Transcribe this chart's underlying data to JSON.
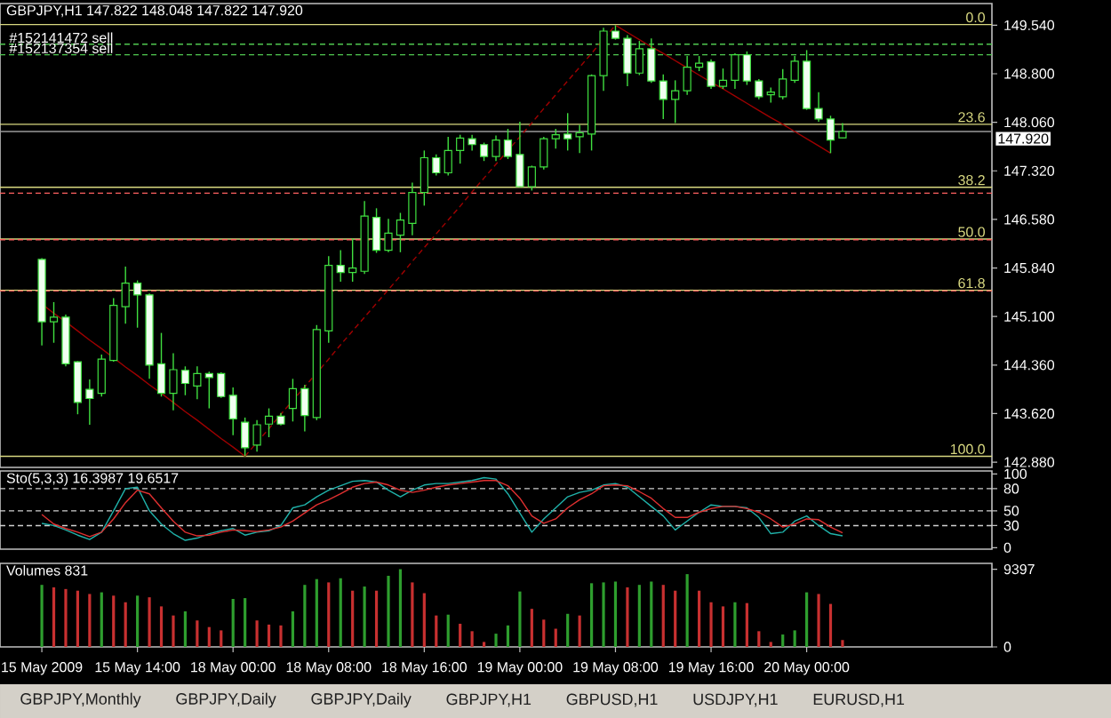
{
  "chart_data": [
    {
      "type": "candlestick",
      "title": "GBPJPY,H1 147.822 148.048 147.822 147.920",
      "categories": [
        null,
        null,
        null,
        null,
        null,
        null,
        null,
        null,
        null,
        null,
        null,
        null,
        null,
        null,
        null,
        null,
        null,
        null,
        null,
        null,
        null,
        null,
        null,
        null,
        null,
        null,
        null,
        null,
        null,
        null,
        null,
        null,
        null,
        null,
        null,
        null,
        null,
        null,
        null,
        null,
        null,
        null,
        null,
        null,
        null,
        null,
        null,
        null,
        null,
        null,
        null,
        null,
        null,
        null,
        null,
        null,
        null,
        null,
        null,
        null,
        null,
        null,
        null,
        null,
        null,
        null,
        null,
        null,
        null,
        null,
        null,
        null,
        null,
        null,
        null,
        null,
        null,
        null,
        null,
        null,
        null,
        null,
        null
      ],
      "ohlc": [
        null,
        null,
        null,
        [
          145.97,
          145.99,
          144.66,
          145.02
        ],
        [
          145.02,
          145.32,
          144.7,
          145.09
        ],
        [
          145.09,
          145.13,
          144.34,
          144.38
        ],
        [
          144.41,
          144.42,
          143.61,
          143.79
        ],
        [
          143.99,
          144.14,
          143.45,
          143.85
        ],
        [
          143.93,
          144.52,
          143.88,
          144.45
        ],
        [
          144.43,
          145.38,
          144.41,
          145.27
        ],
        [
          145.25,
          145.86,
          144.99,
          145.61
        ],
        [
          145.61,
          145.65,
          144.93,
          145.43
        ],
        [
          145.43,
          145.45,
          144.15,
          144.36
        ],
        [
          144.38,
          144.85,
          143.88,
          143.93
        ],
        [
          143.93,
          144.54,
          143.67,
          144.29
        ],
        [
          144.28,
          144.34,
          143.9,
          144.08
        ],
        [
          144.04,
          144.34,
          143.84,
          144.23
        ],
        [
          144.23,
          144.26,
          143.7,
          144.17
        ],
        [
          144.23,
          144.25,
          143.86,
          143.88
        ],
        [
          143.9,
          144.02,
          143.29,
          143.54
        ],
        [
          143.49,
          143.56,
          142.97,
          143.1
        ],
        [
          143.14,
          143.52,
          143.04,
          143.45
        ],
        [
          143.46,
          143.7,
          143.26,
          143.58
        ],
        [
          143.58,
          143.63,
          143.44,
          143.46
        ],
        [
          143.7,
          144.15,
          143.5,
          144.0
        ],
        [
          144.0,
          144.06,
          143.35,
          143.59
        ],
        [
          143.56,
          144.97,
          143.52,
          144.9
        ],
        [
          144.88,
          146.02,
          144.7,
          145.88
        ],
        [
          145.88,
          146.11,
          145.63,
          145.77
        ],
        [
          145.77,
          146.29,
          145.63,
          145.84
        ],
        [
          145.79,
          146.86,
          145.75,
          146.63
        ],
        [
          146.61,
          146.75,
          146.07,
          146.11
        ],
        [
          146.11,
          146.59,
          146.08,
          146.37
        ],
        [
          146.34,
          146.68,
          146.08,
          146.57
        ],
        [
          146.52,
          147.14,
          146.34,
          146.99
        ],
        [
          146.99,
          147.63,
          146.79,
          147.52
        ],
        [
          147.52,
          147.57,
          147.25,
          147.29
        ],
        [
          147.29,
          147.84,
          147.25,
          147.63
        ],
        [
          147.63,
          147.87,
          147.43,
          147.82
        ],
        [
          147.81,
          147.87,
          147.63,
          147.72
        ],
        [
          147.72,
          147.75,
          147.47,
          147.54
        ],
        [
          147.54,
          147.86,
          147.47,
          147.79
        ],
        [
          147.79,
          147.96,
          147.5,
          147.54
        ],
        [
          147.57,
          148.07,
          147.07,
          147.08
        ],
        [
          147.08,
          147.4,
          147.02,
          147.38
        ],
        [
          147.38,
          147.84,
          147.34,
          147.81
        ],
        [
          147.81,
          147.96,
          147.66,
          147.87
        ],
        [
          147.88,
          148.2,
          147.63,
          147.81
        ],
        [
          147.84,
          148.02,
          147.59,
          147.9
        ],
        [
          147.88,
          148.79,
          147.63,
          148.77
        ],
        [
          148.77,
          149.5,
          148.54,
          149.45
        ],
        [
          149.45,
          149.54,
          149.32,
          149.34
        ],
        [
          149.34,
          149.39,
          148.61,
          148.81
        ],
        [
          148.81,
          149.3,
          148.78,
          149.18
        ],
        [
          149.18,
          149.34,
          148.66,
          148.69
        ],
        [
          148.69,
          148.79,
          148.11,
          148.41
        ],
        [
          148.41,
          148.7,
          148.05,
          148.54
        ],
        [
          148.54,
          149.07,
          148.48,
          148.9
        ],
        [
          148.9,
          149.07,
          148.84,
          148.96
        ],
        [
          148.98,
          149.02,
          148.57,
          148.61
        ],
        [
          148.61,
          148.88,
          148.57,
          148.7
        ],
        [
          148.7,
          149.11,
          148.57,
          149.09
        ],
        [
          149.09,
          149.14,
          148.63,
          148.69
        ],
        [
          148.69,
          148.72,
          148.41,
          148.45
        ],
        [
          148.48,
          148.59,
          148.36,
          148.52
        ],
        [
          148.45,
          148.87,
          148.41,
          148.72
        ],
        [
          148.7,
          149.07,
          148.66,
          148.99
        ],
        [
          148.99,
          149.16,
          148.25,
          148.27
        ],
        [
          148.27,
          148.52,
          148.07,
          148.11
        ],
        [
          148.11,
          148.16,
          147.59,
          147.79
        ],
        [
          147.822,
          148.048,
          147.822,
          147.92
        ],
        null,
        null,
        null,
        null,
        null,
        null,
        null,
        null,
        null,
        null,
        null,
        null
      ],
      "color": "#40e040",
      "colors": [
        null,
        null,
        null,
        "#f0fff0",
        "#000000",
        "#f0fff0",
        "#f0fff0",
        "#f0fff0",
        "#000000",
        "#000000",
        "#000000",
        "#f0fff0",
        "#f0fff0",
        "#f0fff0",
        "#000000",
        "#f0fff0",
        "#000000",
        "#f0fff0",
        "#f0fff0",
        "#f0fff0",
        "#f0fff0",
        "#000000",
        "#000000",
        "#f0fff0",
        "#000000",
        "#f0fff0",
        "#000000",
        "#000000",
        "#f0fff0",
        "#000000",
        "#000000",
        "#f0fff0",
        "#000000",
        "#000000",
        "#000000",
        "#000000",
        "#f0fff0",
        "#000000",
        "#000000",
        "#f0fff0",
        "#f0fff0",
        "#000000",
        "#f0fff0",
        "#f0fff0",
        "#000000",
        "#000000",
        "#000000",
        "#f0fff0",
        "#000000",
        "#000000",
        "#000000",
        "#f0fff0",
        "#f0fff0",
        "#000000",
        "#f0fff0",
        "#f0fff0",
        "#000000",
        "#000000",
        "#000000",
        "#f0fff0",
        "#000000",
        "#000000",
        "#f0fff0",
        "#f0fff0",
        "#000000",
        "#000000",
        "#000000",
        "#f0fff0",
        "#f0fff0",
        "#f0fff0",
        "#000000",
        null,
        null,
        null,
        null,
        null,
        null,
        null,
        null,
        null,
        null,
        null,
        null
      ],
      "series": [
        {
          "type": "line",
          "color": "#a00000",
          "line_style": "solid",
          "values": [
            null,
            null,
            null,
            145.29,
            145.15,
            145.02,
            144.88,
            144.74,
            144.61,
            144.47,
            144.33,
            144.2,
            144.06,
            143.93,
            143.79,
            143.65,
            143.52,
            143.38,
            143.24,
            143.11,
            142.97,
            null,
            null,
            null,
            null,
            null,
            null,
            null,
            null,
            null,
            null,
            null,
            null,
            null,
            null,
            null,
            null,
            null,
            null,
            null,
            null,
            null,
            null,
            null,
            null,
            null,
            null,
            null,
            null,
            null,
            null,
            null,
            null,
            null,
            null,
            null,
            null,
            null,
            null,
            null,
            null,
            null,
            null,
            null,
            null,
            null,
            null,
            null,
            null,
            null,
            null,
            null,
            null,
            null,
            null,
            null,
            null,
            null,
            null,
            null,
            null,
            null,
            null
          ]
        },
        {
          "type": "line",
          "color": "#a00000",
          "line_style": "dashed",
          "values": [
            null,
            null,
            null,
            null,
            null,
            null,
            null,
            null,
            null,
            null,
            null,
            null,
            null,
            null,
            null,
            null,
            null,
            null,
            null,
            null,
            142.97,
            143.18,
            143.39,
            143.61,
            143.82,
            144.03,
            144.24,
            144.45,
            144.67,
            144.88,
            145.09,
            145.3,
            145.51,
            145.72,
            145.94,
            146.15,
            146.36,
            146.57,
            146.78,
            147.0,
            147.21,
            147.42,
            147.63,
            147.84,
            148.05,
            148.27,
            148.48,
            148.69,
            148.9,
            149.11,
            149.33,
            149.54,
            null,
            null,
            null,
            null,
            null,
            null,
            null,
            null,
            null,
            null,
            null,
            null,
            null,
            null,
            null,
            null,
            null,
            null,
            null,
            null,
            null,
            null,
            null,
            null,
            null,
            null,
            null,
            null,
            null,
            null,
            null
          ]
        },
        {
          "type": "line",
          "color": "#a00000",
          "line_style": "solid",
          "values": [
            null,
            null,
            null,
            null,
            null,
            null,
            null,
            null,
            null,
            null,
            null,
            null,
            null,
            null,
            null,
            null,
            null,
            null,
            null,
            null,
            null,
            null,
            null,
            null,
            null,
            null,
            null,
            null,
            null,
            null,
            null,
            null,
            null,
            null,
            null,
            null,
            null,
            null,
            null,
            null,
            null,
            null,
            null,
            null,
            null,
            null,
            null,
            null,
            null,
            null,
            null,
            149.54,
            149.43,
            149.32,
            149.21,
            149.11,
            149.0,
            148.89,
            148.78,
            148.67,
            148.57,
            148.46,
            148.35,
            148.24,
            148.13,
            148.03,
            147.92,
            147.81,
            147.7,
            147.59,
            null,
            null,
            null,
            null,
            null,
            null,
            null,
            null,
            null,
            null,
            null,
            null,
            null
          ]
        }
      ],
      "ylim": [
        142.8,
        149.87
      ],
      "yticks": [
        {
          "value": 142.88,
          "label": "142.880"
        },
        {
          "value": 143.62,
          "label": "143.620"
        },
        {
          "value": 144.36,
          "label": "144.360"
        },
        {
          "value": 145.1,
          "label": "145.100"
        },
        {
          "value": 145.84,
          "label": "145.840"
        },
        {
          "value": 146.58,
          "label": "146.580"
        },
        {
          "value": 147.32,
          "label": "147.320"
        },
        {
          "value": 148.06,
          "label": "148.060"
        },
        {
          "value": 148.8,
          "label": "148.800"
        },
        {
          "value": 149.54,
          "label": "149.540"
        }
      ],
      "tick_labels": "y",
      "ref_lines": [
        {
          "axis": "y",
          "value": 149.25,
          "label": "#152141472 sell",
          "color": "#50c850",
          "line_style": "dashed"
        },
        {
          "axis": "y",
          "value": 149.09,
          "label": "#152137354 sell",
          "color": "#50c850",
          "line_style": "dashed"
        },
        {
          "axis": "y",
          "value": 149.55,
          "color": "#d8d880"
        },
        {
          "axis": "y",
          "value": 148.03,
          "color": "#d8d880"
        },
        {
          "axis": "y",
          "value": 147.07,
          "color": "#d8d880"
        },
        {
          "axis": "y",
          "value": 146.28,
          "color": "#d8d880"
        },
        {
          "axis": "y",
          "value": 145.5,
          "color": "#d8d880"
        },
        {
          "axis": "y",
          "value": 142.97,
          "color": "#d8d880"
        },
        {
          "axis": "y",
          "value": 146.98,
          "color": "#ff6060",
          "line_style": "dashed"
        },
        {
          "axis": "y",
          "value": 146.27,
          "color": "#ff6060",
          "line_style": "dashed"
        },
        {
          "axis": "y",
          "value": 145.49,
          "color": "#ff6060",
          "line_style": "dashed"
        },
        {
          "axis": "y",
          "value": 147.92,
          "label": "147.920",
          "color": "#9a9a9a"
        }
      ],
      "annotations": [
        {
          "text": "0.0",
          "y": 149.55
        },
        {
          "text": "23.6",
          "y": 148.03
        },
        {
          "text": "38.2",
          "y": 147.07
        },
        {
          "text": "50.0",
          "y": 146.28
        },
        {
          "text": "61.8",
          "y": 145.5
        },
        {
          "text": "100.0",
          "y": 142.97
        }
      ]
    },
    {
      "type": "line",
      "title": "Sto(5,3,3) 16.3987 19.6517",
      "categories": [
        null,
        null,
        null,
        null,
        null,
        null,
        null,
        null,
        null,
        null,
        null,
        null,
        null,
        null,
        null,
        null,
        null,
        null,
        null,
        null,
        null,
        null,
        null,
        null,
        null,
        null,
        null,
        null,
        null,
        null,
        null,
        null,
        null,
        null,
        null,
        null,
        null,
        null,
        null,
        null,
        null,
        null,
        null,
        null,
        null,
        null,
        null,
        null,
        null,
        null,
        null,
        null,
        null,
        null,
        null,
        null,
        null,
        null,
        null,
        null,
        null,
        null,
        null,
        null,
        null,
        null,
        null,
        null,
        null,
        null,
        null,
        null,
        null,
        null,
        null,
        null,
        null,
        null,
        null,
        null,
        null,
        null,
        null
      ],
      "series": [
        {
          "color": "#20b2aa",
          "values": [
            null,
            null,
            null,
            33,
            30,
            24,
            17,
            11,
            21,
            50,
            80,
            82,
            50,
            32,
            19,
            10,
            13,
            19,
            23,
            26,
            17,
            21,
            23,
            30,
            54,
            58,
            69,
            78,
            84,
            90,
            91,
            89,
            78,
            69,
            78,
            85,
            87,
            87,
            89,
            91,
            95,
            93,
            73,
            47,
            21,
            39,
            54,
            69,
            75,
            78,
            85,
            87,
            82,
            69,
            56,
            43,
            24,
            36,
            48,
            58,
            56,
            56,
            54,
            41,
            19,
            21,
            36,
            43,
            30,
            19,
            16,
            null,
            null,
            null,
            null,
            null,
            null,
            null,
            null,
            null,
            null,
            null,
            null
          ]
        },
        {
          "color": "#e03030",
          "values": [
            null,
            null,
            null,
            45,
            32,
            26,
            21,
            15,
            21,
            39,
            61,
            78,
            73,
            54,
            36,
            21,
            16,
            17,
            21,
            24,
            23,
            22,
            24,
            28,
            36,
            47,
            58,
            65,
            73,
            82,
            87,
            89,
            85,
            78,
            75,
            78,
            82,
            85,
            87,
            89,
            91,
            91,
            84,
            67,
            43,
            33,
            39,
            54,
            65,
            73,
            84,
            85,
            84,
            76,
            67,
            53,
            41,
            41,
            48,
            53,
            56,
            56,
            53,
            48,
            39,
            28,
            32,
            39,
            38,
            28,
            20,
            null,
            null,
            null,
            null,
            null,
            null,
            null,
            null,
            null,
            null,
            null,
            null
          ]
        }
      ],
      "ylim": [
        -2,
        104
      ],
      "yticks": [
        0,
        30,
        50,
        80,
        100
      ],
      "tick_labels": "y",
      "ref_lines": [
        {
          "axis": "y",
          "value": 80,
          "color": "#d0d0d0",
          "line_style": "dashed"
        },
        {
          "axis": "y",
          "value": 50,
          "color": "#d0d0d0",
          "line_style": "dashed"
        },
        {
          "axis": "y",
          "value": 30,
          "color": "#d0d0d0",
          "line_style": "dashed"
        }
      ]
    },
    {
      "type": "bar",
      "title": "Volumes 831",
      "categories": [
        null,
        null,
        null,
        "15 May 2009",
        null,
        null,
        null,
        null,
        null,
        null,
        null,
        "15 May 14:00",
        null,
        null,
        null,
        null,
        null,
        null,
        null,
        "18 May 00:00",
        null,
        null,
        null,
        null,
        null,
        null,
        null,
        "18 May 08:00",
        null,
        null,
        null,
        null,
        null,
        null,
        null,
        "18 May 16:00",
        null,
        null,
        null,
        null,
        null,
        null,
        null,
        "19 May 00:00",
        null,
        null,
        null,
        null,
        null,
        null,
        null,
        "19 May 08:00",
        null,
        null,
        null,
        null,
        null,
        null,
        null,
        "19 May 16:00",
        null,
        null,
        null,
        null,
        null,
        null,
        null,
        "20 May 00:00",
        null,
        null,
        null,
        null,
        null,
        null,
        null,
        null,
        null,
        null,
        null,
        null,
        null,
        null,
        null
      ],
      "values": [
        null,
        null,
        null,
        7500,
        7200,
        7000,
        6800,
        6400,
        6600,
        6200,
        5400,
        6200,
        6000,
        4900,
        3800,
        4300,
        3200,
        2400,
        2000,
        5800,
        5900,
        3200,
        2700,
        2600,
        4300,
        7500,
        8200,
        7800,
        8300,
        6800,
        7300,
        6800,
        8600,
        9397,
        7800,
        6500,
        3800,
        3900,
        2800,
        1900,
        600,
        1600,
        2600,
        6700,
        4600,
        3300,
        2200,
        4000,
        3800,
        7700,
        7800,
        7900,
        7200,
        7500,
        7900,
        7500,
        6800,
        8800,
        6800,
        5400,
        4900,
        5400,
        5300,
        1900,
        600,
        1500,
        2000,
        6600,
        6400,
        5200,
        831,
        null,
        null,
        null,
        null,
        null,
        null,
        null,
        null,
        null,
        null,
        null,
        null
      ],
      "colors": [
        null,
        null,
        null,
        "#2e9e2e",
        "#c83030",
        "#c83030",
        "#c83030",
        "#c83030",
        "#2e9e2e",
        "#c83030",
        "#c83030",
        "#2e9e2e",
        "#c83030",
        "#c83030",
        "#c83030",
        "#2e9e2e",
        "#c83030",
        "#c83030",
        "#c83030",
        "#2e9e2e",
        "#2e9e2e",
        "#c83030",
        "#c83030",
        "#c83030",
        "#2e9e2e",
        "#2e9e2e",
        "#2e9e2e",
        "#c83030",
        "#2e9e2e",
        "#c83030",
        "#2e9e2e",
        "#c83030",
        "#2e9e2e",
        "#2e9e2e",
        "#c83030",
        "#c83030",
        "#c83030",
        "#2e9e2e",
        "#c83030",
        "#c83030",
        "#c83030",
        "#2e9e2e",
        "#2e9e2e",
        "#2e9e2e",
        "#c83030",
        "#c83030",
        "#c83030",
        "#2e9e2e",
        "#c83030",
        "#2e9e2e",
        "#2e9e2e",
        "#2e9e2e",
        "#c83030",
        "#2e9e2e",
        "#2e9e2e",
        "#c83030",
        "#c83030",
        "#2e9e2e",
        "#c83030",
        "#c83030",
        "#c83030",
        "#2e9e2e",
        "#c83030",
        "#c83030",
        "#c83030",
        "#2e9e2e",
        "#2e9e2e",
        "#2e9e2e",
        "#c83030",
        "#c83030",
        "#c83030",
        null,
        null,
        null,
        null,
        null,
        null,
        null,
        null,
        null,
        null,
        null,
        null
      ],
      "ylim": [
        0,
        10100
      ],
      "yticks": [
        0,
        9397
      ]
    },
    {
      "type": "other",
      "annotations": [
        "GBPJPY,Monthly",
        "GBPJPY,Daily",
        "GBPJPY,Daily",
        "GBPJPY,H1",
        "GBPUSD,H1",
        "USDJPY,H1",
        "EURUSD,H1"
      ]
    }
  ]
}
